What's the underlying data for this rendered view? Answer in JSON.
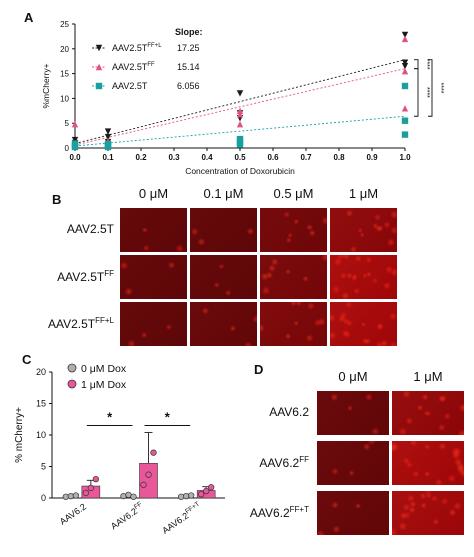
{
  "panels": {
    "A": "A",
    "B": "B",
    "C": "C",
    "D": "D"
  },
  "chart_data": [
    {
      "panel": "A",
      "type": "scatter",
      "xlabel": "Concentration of Doxorubicin",
      "ylabel": "%mCherry+",
      "xlim": [
        0.0,
        1.0
      ],
      "ylim": [
        0,
        25
      ],
      "xticks": [
        "0.0",
        "0.1",
        "0.2",
        "0.3",
        "0.4",
        "0.5",
        "0.6",
        "0.7",
        "0.8",
        "0.9",
        "1.0"
      ],
      "yticks": [
        "0",
        "5",
        "10",
        "15",
        "20",
        "25"
      ],
      "slope_header": "Slope:",
      "series": [
        {
          "name": "AAV2.5T",
          "name_sup": "FF+L",
          "slope": "17.25",
          "marker": "down-triangle",
          "color": "#1a1a1a",
          "points": [
            [
              0,
              0.6
            ],
            [
              0,
              1.0
            ],
            [
              0,
              1.6
            ],
            [
              0.1,
              1.2
            ],
            [
              0.1,
              2.2
            ],
            [
              0.1,
              3.3
            ],
            [
              0.5,
              6.0
            ],
            [
              0.5,
              7.0
            ],
            [
              0.5,
              11.0
            ],
            [
              1.0,
              16.5
            ],
            [
              1.0,
              17.2
            ],
            [
              1.0,
              22.8
            ]
          ],
          "fit": [
            [
              0,
              0.9
            ],
            [
              1.0,
              17.8
            ]
          ]
        },
        {
          "name": "AAV2.5T",
          "name_sup": "FF",
          "slope": "15.14",
          "marker": "up-triangle",
          "color": "#e0537e",
          "points": [
            [
              0,
              0.4
            ],
            [
              0,
              0.8
            ],
            [
              0,
              4.8
            ],
            [
              0.1,
              0.5
            ],
            [
              0.1,
              0.8
            ],
            [
              0.1,
              1.4
            ],
            [
              0.5,
              4.8
            ],
            [
              0.5,
              6.8
            ],
            [
              0.5,
              7.5
            ],
            [
              1.0,
              8.0
            ],
            [
              1.0,
              15.5
            ],
            [
              1.0,
              22.0
            ]
          ],
          "fit": [
            [
              0,
              0.6
            ],
            [
              1.0,
              16.0
            ]
          ]
        },
        {
          "name": "AAV2.5T",
          "name_sup": "",
          "slope": "6.056",
          "marker": "square",
          "color": "#1a9e9e",
          "points": [
            [
              0,
              0.2
            ],
            [
              0,
              0.5
            ],
            [
              0,
              0.9
            ],
            [
              0.1,
              0.2
            ],
            [
              0.1,
              0.5
            ],
            [
              0.1,
              0.8
            ],
            [
              0.5,
              0.7
            ],
            [
              0.5,
              1.2
            ],
            [
              0.5,
              1.8
            ],
            [
              1.0,
              2.7
            ],
            [
              1.0,
              5.5
            ],
            [
              1.0,
              12.5
            ]
          ],
          "fit": [
            [
              0,
              0.4
            ],
            [
              1.0,
              6.4
            ]
          ]
        }
      ],
      "significance": [
        {
          "label": "****",
          "between": "FF+L vs FF"
        },
        {
          "label": "****",
          "between": "FF vs 2.5T"
        },
        {
          "label": "****",
          "between": "FF+L vs 2.5T"
        }
      ]
    },
    {
      "panel": "C",
      "type": "bar",
      "ylabel": "% mCherry+",
      "ylim": [
        0,
        20
      ],
      "yticks": [
        "0",
        "5",
        "10",
        "15",
        "20"
      ],
      "categories": [
        "AAV6.2",
        "AAV6.2FF",
        "AAV6.2FF+T"
      ],
      "category_base": [
        "AAV6.2",
        "AAV6.2",
        "AAV6.2"
      ],
      "category_sup": [
        "",
        "FF",
        "FF+T"
      ],
      "series": [
        {
          "name": "0 μM Dox",
          "color": "#b0b0b0",
          "values": [
            0,
            0,
            0
          ],
          "points": [
            [
              0.2,
              0.3,
              0.4
            ],
            [
              0.3,
              0.5,
              0.2
            ],
            [
              0.2,
              0.3,
              0.4
            ]
          ]
        },
        {
          "name": "1 μM Dox",
          "color": "#e8579a",
          "values": [
            1.9,
            5.5,
            1.2
          ],
          "errors": [
            0.9,
            4.9,
            0.6
          ],
          "points": [
            [
              0.8,
              1.6,
              3.0
            ],
            [
              2.1,
              3.7,
              7.2
            ],
            [
              0.6,
              1.1,
              1.7
            ]
          ]
        }
      ],
      "significance": [
        {
          "label": "*",
          "from": 0,
          "to": 1,
          "y": 11.5
        },
        {
          "label": "*",
          "from": 1,
          "to": 2,
          "y": 11.5
        }
      ]
    }
  ],
  "panel_b": {
    "columns": [
      "0 μM",
      "0.1 μM",
      "0.5 μM",
      "1 μM"
    ],
    "rows": [
      {
        "base": "AAV2.5T",
        "sup": ""
      },
      {
        "base": "AAV2.5T",
        "sup": "FF"
      },
      {
        "base": "AAV2.5T",
        "sup": "FF+L"
      }
    ],
    "intensity": [
      [
        0.15,
        0.15,
        0.3,
        0.55
      ],
      [
        0.15,
        0.15,
        0.35,
        0.8
      ],
      [
        0.15,
        0.2,
        0.4,
        0.8
      ]
    ]
  },
  "panel_d": {
    "columns": [
      "0 μM",
      "1 μM"
    ],
    "rows": [
      {
        "base": "AAV6.2",
        "sup": ""
      },
      {
        "base": "AAV6.2",
        "sup": "FF"
      },
      {
        "base": "AAV6.2",
        "sup": "FF+T"
      }
    ],
    "intensity": [
      [
        0.2,
        0.6
      ],
      [
        0.2,
        0.8
      ],
      [
        0.2,
        0.75
      ]
    ]
  }
}
